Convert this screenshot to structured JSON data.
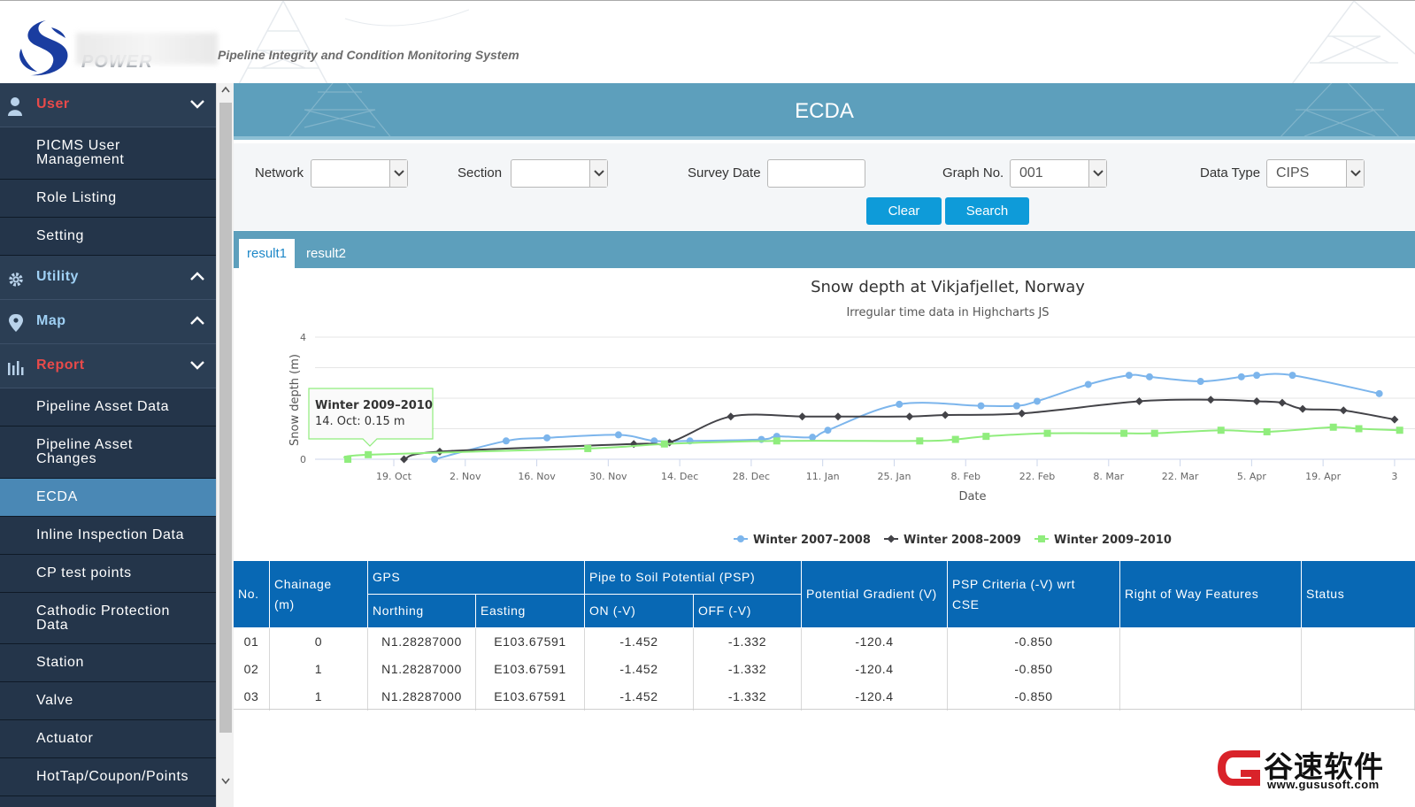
{
  "header": {
    "brand_under": "POWER",
    "app_title": "Pipeline Integrity and Condition Monitoring System"
  },
  "sidebar": {
    "groups": [
      {
        "label": "User",
        "icon": "user-icon",
        "expanded": true,
        "color": "#e84a4a",
        "items": [
          "PICMS User Management",
          "Role Listing",
          "Setting"
        ]
      },
      {
        "label": "Utility",
        "icon": "gear-icon",
        "expanded": false,
        "color": "#9fd0f4"
      },
      {
        "label": "Map",
        "icon": "map-pin-icon",
        "expanded": false,
        "color": "#9fd0f4"
      },
      {
        "label": "Report",
        "icon": "bar-chart-icon",
        "expanded": true,
        "color": "#e84a4a",
        "items": [
          "Pipeline Asset Data",
          "Pipeline Asset Changes",
          "ECDA",
          "Inline Inspection Data",
          "CP test points",
          "Cathodic Protection Data",
          "Station",
          "Valve",
          "Actuator",
          "HotTap/Coupon/Points"
        ]
      }
    ],
    "active_item": "ECDA"
  },
  "page": {
    "title": "ECDA"
  },
  "filters": {
    "network_label": "Network",
    "network_value": "",
    "section_label": "Section",
    "section_value": "",
    "survey_date_label": "Survey Date",
    "survey_date_value": "",
    "graph_no_label": "Graph No.",
    "graph_no_value": "001",
    "data_type_label": "Data Type",
    "data_type_value": "CIPS",
    "clear_label": "Clear",
    "search_label": "Search"
  },
  "tabs": [
    {
      "label": "result1",
      "active": true
    },
    {
      "label": "result2",
      "active": false
    }
  ],
  "chart_data": {
    "type": "line",
    "title": "Snow depth at Vikjafjellet, Norway",
    "subtitle": "Irregular time data in Highcharts JS",
    "xlabel": "Date",
    "ylabel": "Snow depth (m)",
    "ylim": [
      0,
      4
    ],
    "y_ticks": [
      0,
      4
    ],
    "x_ticks": [
      "19. Oct",
      "2. Nov",
      "16. Nov",
      "30. Nov",
      "14. Dec",
      "28. Dec",
      "11. Jan",
      "25. Jan",
      "8. Feb",
      "22. Feb",
      "8. Mar",
      "22. Mar",
      "5. Apr",
      "19. Apr",
      "3"
    ],
    "grid": true,
    "legend_position": "bottom",
    "tooltip": {
      "series": "Winter 2009–2010",
      "text": "14. Oct: 0.15 m"
    },
    "series": [
      {
        "name": "Winter 2007–2008",
        "color": "#7cb5ec",
        "marker": "circle",
        "x": [
          "2008-10-27",
          "2008-11-10",
          "2008-11-18",
          "2008-12-02",
          "2008-12-09",
          "2008-12-16",
          "2008-12-30",
          "2009-01-02",
          "2009-01-09",
          "2009-01-12",
          "2009-01-26",
          "2009-02-11",
          "2009-02-18",
          "2009-02-22",
          "2009-03-04",
          "2009-03-12",
          "2009-03-16",
          "2009-03-26",
          "2009-04-03",
          "2009-04-06",
          "2009-04-13",
          "2009-04-30"
        ],
        "values": [
          0.0,
          0.6,
          0.7,
          0.8,
          0.6,
          0.6,
          0.65,
          0.75,
          0.72,
          0.95,
          1.8,
          1.75,
          1.75,
          1.9,
          2.45,
          2.75,
          2.7,
          2.55,
          2.7,
          2.75,
          2.75,
          2.15
        ]
      },
      {
        "name": "Winter 2008–2009",
        "color": "#434348",
        "marker": "diamond",
        "x": [
          "2008-10-21",
          "2008-10-28",
          "2008-12-05",
          "2008-12-12",
          "2008-12-24",
          "2009-01-07",
          "2009-01-14",
          "2009-01-28",
          "2009-02-04",
          "2009-02-19",
          "2009-03-14",
          "2009-03-28",
          "2009-04-06",
          "2009-04-11",
          "2009-04-15",
          "2009-04-23",
          "2009-05-03"
        ],
        "values": [
          0.0,
          0.25,
          0.5,
          0.55,
          1.4,
          1.4,
          1.4,
          1.4,
          1.45,
          1.5,
          1.9,
          1.95,
          1.9,
          1.85,
          1.65,
          1.6,
          1.3
        ]
      },
      {
        "name": "Winter 2009–2010",
        "color": "#90ed7d",
        "marker": "square",
        "x": [
          "2008-10-10",
          "2008-10-14",
          "2008-11-26",
          "2008-12-11",
          "2009-01-02",
          "2009-01-30",
          "2009-02-06",
          "2009-02-12",
          "2009-02-24",
          "2009-03-11",
          "2009-03-17",
          "2009-03-30",
          "2009-04-08",
          "2009-04-21",
          "2009-04-26",
          "2009-05-04"
        ],
        "values": [
          0.0,
          0.15,
          0.35,
          0.5,
          0.6,
          0.6,
          0.65,
          0.75,
          0.85,
          0.85,
          0.85,
          0.95,
          0.9,
          1.05,
          1.0,
          0.95
        ]
      }
    ]
  },
  "table": {
    "headers": {
      "no": "No.",
      "chainage": "Chainage (m)",
      "gps": "GPS",
      "northing": "Northing",
      "easting": "Easting",
      "psp": "Pipe to Soil Potential (PSP)",
      "on": "ON (-V)",
      "off": "OFF (-V)",
      "gradient": "Potential Gradient (V)",
      "criteria": "PSP Criteria (-V) wrt CSE",
      "row_features": "Right of Way Features",
      "status": "Status"
    },
    "rows": [
      {
        "no": "01",
        "chainage": "0",
        "northing": "N1.28287000",
        "easting": "E103.67591",
        "on": "-1.452",
        "off": "-1.332",
        "gradient": "-120.4",
        "criteria": "-0.850",
        "features": "",
        "status": ""
      },
      {
        "no": "02",
        "chainage": "1",
        "northing": "N1.28287000",
        "easting": "E103.67591",
        "on": "-1.452",
        "off": "-1.332",
        "gradient": "-120.4",
        "criteria": "-0.850",
        "features": "",
        "status": ""
      },
      {
        "no": "03",
        "chainage": "1",
        "northing": "N1.28287000",
        "easting": "E103.67591",
        "on": "-1.452",
        "off": "-1.332",
        "gradient": "-120.4",
        "criteria": "-0.850",
        "features": "",
        "status": ""
      }
    ]
  },
  "watermark": {
    "chinese": "谷速软件",
    "url": "www.gususoft.com"
  }
}
